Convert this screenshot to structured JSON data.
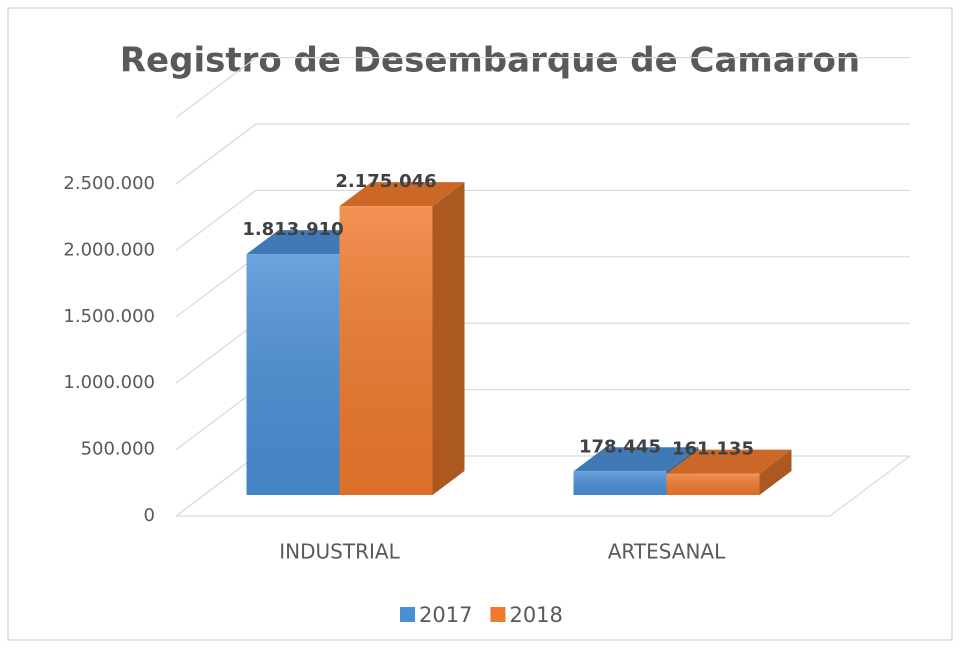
{
  "chart_data": {
    "type": "bar3d",
    "title": "Registro de Desembarque de Camaron",
    "categories": [
      "INDUSTRIAL",
      "ARTESANAL"
    ],
    "series": [
      {
        "name": "2017",
        "color": "#4a8fd6",
        "values": [
          1813910,
          178445
        ],
        "value_labels": [
          "1.813.910",
          "178.445"
        ]
      },
      {
        "name": "2018",
        "color": "#ef7a2e",
        "values": [
          2175046,
          161135
        ],
        "value_labels": [
          "2.175.046",
          "161.135"
        ]
      }
    ],
    "ylim": [
      0,
      3000000
    ],
    "yticks": [
      0,
      {
        "value": 500000,
        "label": "500.000"
      },
      {
        "value": 1000000,
        "label": "1.000.000"
      },
      {
        "value": 1500000,
        "label": "1.500.000"
      },
      {
        "value": 2000000,
        "label": "2.000.000"
      },
      {
        "value": 2500000,
        "label": "2.500.000"
      }
    ],
    "grid": true,
    "legend": "bottom"
  }
}
